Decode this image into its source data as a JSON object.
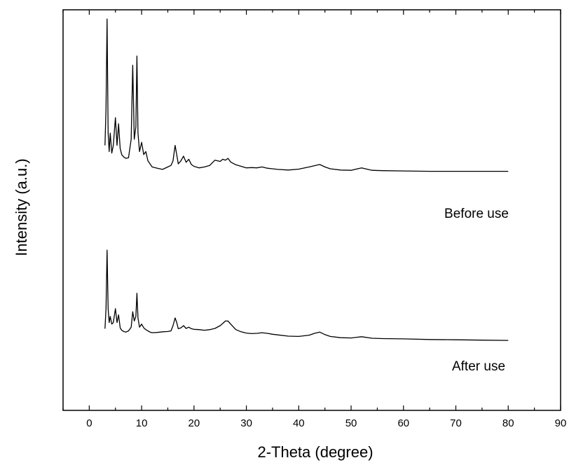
{
  "chart_data": {
    "type": "line",
    "xlabel": "2-Theta (degree)",
    "ylabel": "Intensity (a.u.)",
    "xlim": [
      -5,
      90
    ],
    "xticks": [
      "0",
      "10",
      "20",
      "30",
      "40",
      "50",
      "60",
      "70",
      "80",
      "90"
    ],
    "y_tick_labels": false,
    "legend": "none",
    "grid": false,
    "colors": {
      "line": "#000000",
      "axis": "#000000"
    },
    "series": [
      {
        "name": "Before use",
        "x": [
          3.0,
          3.2,
          3.4,
          3.6,
          3.8,
          4.0,
          4.3,
          4.6,
          5.0,
          5.3,
          5.6,
          5.9,
          6.2,
          6.6,
          7.0,
          7.5,
          8.0,
          8.3,
          8.6,
          8.9,
          9.1,
          9.3,
          9.6,
          10.0,
          10.4,
          10.8,
          11.2,
          11.6,
          12.0,
          13.0,
          14.0,
          15.0,
          15.6,
          16.0,
          16.4,
          16.7,
          17.0,
          17.5,
          18.0,
          18.5,
          19.0,
          19.5,
          20.0,
          21.0,
          22.0,
          23.0,
          24.0,
          25.0,
          25.5,
          26.0,
          26.5,
          27.0,
          28.0,
          29.0,
          30.0,
          31.0,
          32.0,
          33.0,
          34.0,
          35.0,
          36.0,
          38.0,
          40.0,
          42.0,
          43.0,
          44.0,
          45.0,
          46.0,
          48.0,
          50.0,
          52.0,
          54.0,
          56.0,
          60.0,
          65.0,
          70.0,
          75.0,
          80.0
        ],
        "y": [
          860,
          980,
          1270,
          900,
          840,
          900,
          835,
          860,
          950,
          860,
          930,
          850,
          830,
          822,
          818,
          820,
          880,
          1120,
          880,
          920,
          1150,
          900,
          840,
          870,
          830,
          840,
          810,
          800,
          790,
          786,
          782,
          790,
          795,
          810,
          860,
          830,
          800,
          810,
          825,
          805,
          815,
          798,
          792,
          787,
          790,
          795,
          812,
          808,
          815,
          812,
          818,
          806,
          797,
          792,
          787,
          788,
          787,
          790,
          786,
          784,
          782,
          780,
          783,
          790,
          794,
          798,
          790,
          784,
          780,
          779,
          787,
          779,
          778,
          777,
          776,
          776,
          776,
          776
        ]
      },
      {
        "name": "After use",
        "x": [
          3.0,
          3.2,
          3.4,
          3.6,
          3.8,
          4.0,
          4.3,
          4.6,
          5.0,
          5.3,
          5.6,
          5.9,
          6.2,
          6.6,
          7.0,
          7.5,
          8.0,
          8.3,
          8.6,
          8.9,
          9.1,
          9.3,
          9.6,
          10.0,
          10.4,
          10.8,
          11.2,
          11.6,
          12.0,
          13.0,
          14.0,
          15.0,
          15.6,
          16.0,
          16.4,
          16.7,
          17.0,
          17.5,
          18.0,
          18.5,
          19.0,
          19.5,
          20.0,
          21.0,
          22.0,
          23.0,
          24.0,
          25.0,
          25.5,
          26.0,
          26.5,
          27.0,
          28.0,
          29.0,
          30.0,
          31.0,
          32.0,
          33.0,
          34.0,
          35.0,
          36.0,
          38.0,
          40.0,
          42.0,
          43.0,
          44.0,
          45.0,
          46.0,
          48.0,
          50.0,
          52.0,
          54.0,
          56.0,
          60.0,
          65.0,
          70.0,
          75.0,
          80.0
        ],
        "y": [
          265,
          330,
          520,
          330,
          285,
          305,
          280,
          285,
          330,
          285,
          310,
          268,
          260,
          256,
          254,
          258,
          270,
          320,
          290,
          305,
          380,
          300,
          270,
          280,
          268,
          262,
          258,
          254,
          252,
          253,
          255,
          256,
          258,
          275,
          300,
          285,
          265,
          268,
          275,
          266,
          270,
          265,
          263,
          262,
          260,
          262,
          266,
          275,
          282,
          290,
          290,
          280,
          262,
          255,
          251,
          249,
          250,
          252,
          250,
          247,
          245,
          241,
          240,
          244,
          250,
          254,
          246,
          240,
          236,
          235,
          239,
          234,
          233,
          232,
          230,
          229,
          228,
          227
        ]
      }
    ]
  }
}
